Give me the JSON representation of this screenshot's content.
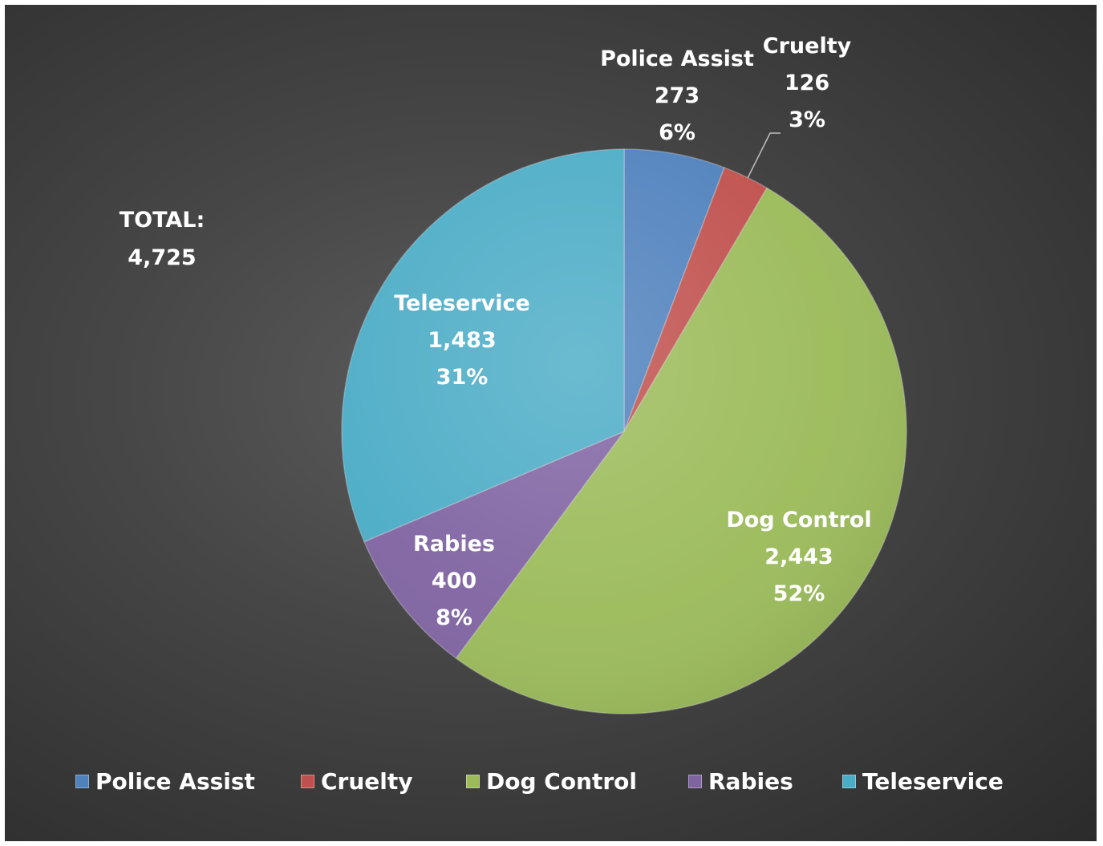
{
  "chart_data": {
    "type": "pie",
    "total_label": [
      "TOTAL:",
      "4,725"
    ],
    "slices": [
      {
        "name": "Police Assist",
        "value": 273,
        "value_label": "273",
        "percent_label": "6%",
        "color": "#4f81bd"
      },
      {
        "name": "Cruelty",
        "value": 126,
        "value_label": "126",
        "percent_label": "3%",
        "color": "#c0504d"
      },
      {
        "name": "Dog Control",
        "value": 2443,
        "value_label": "2,443",
        "percent_label": "52%",
        "color": "#9bbb59"
      },
      {
        "name": "Rabies",
        "value": 400,
        "value_label": "400",
        "percent_label": "8%",
        "color": "#8064a2"
      },
      {
        "name": "Teleservice",
        "value": 1483,
        "value_label": "1,483",
        "percent_label": "31%",
        "color": "#4bacc6"
      }
    ],
    "legend": {
      "placement": "bottom"
    }
  }
}
